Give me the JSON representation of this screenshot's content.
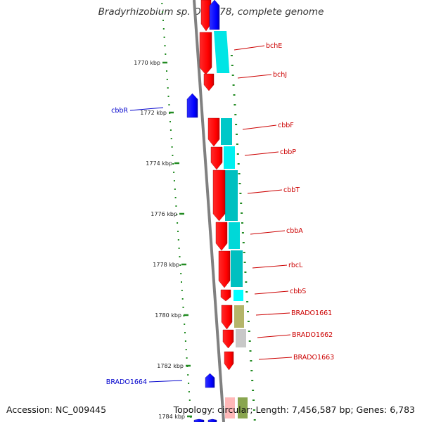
{
  "title": "Bradyrhizobium sp. ORS278, complete genome",
  "footer": {
    "accession": "Accession: NC_009445",
    "stats": "Topology: circular; Length: 7,456,587 bp; Genes: 6,783"
  },
  "colors": {
    "backbone": "#808080",
    "forward_gene": "#ff0000",
    "reverse_gene": "#0000ff",
    "cyan_track": "#00e5e5",
    "olive_track": "#b5b56a",
    "gray_track": "#c0c0c0",
    "dark_olive": "#6b8e23",
    "tick": "#228b22",
    "forward_label": "#cc0000",
    "reverse_label": "#0000cc"
  },
  "ticks": [
    "1770 kbp",
    "1772 kbp",
    "1774 kbp",
    "1776 kbp",
    "1778 kbp",
    "1780 kbp",
    "1782 kbp",
    "1784 kbp"
  ],
  "forward_labels": [
    "bchE",
    "bchJ",
    "cbbF",
    "cbbP",
    "cbbT",
    "cbbA",
    "rbcL",
    "cbbS",
    "BRADO1661",
    "BRADO1662",
    "BRADO1663"
  ],
  "reverse_labels": [
    "cbbR",
    "BRADO1664"
  ]
}
